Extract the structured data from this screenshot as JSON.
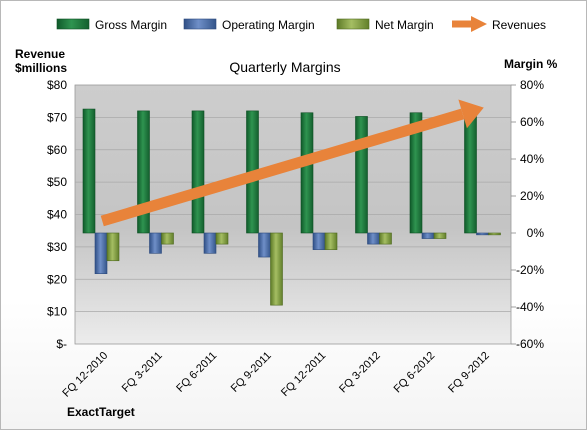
{
  "chart_data": {
    "type": "bar",
    "title": "Quarterly Margins",
    "left_axis_label": [
      "Revenue",
      "$millions"
    ],
    "right_axis_label": "Margin %",
    "source_label": "ExactTarget",
    "categories": [
      "FQ 12-2010",
      "FQ 3-2011",
      "FQ 6-2011",
      "FQ 9-2011",
      "FQ 12-2011",
      "FQ 3-2012",
      "FQ 6-2012",
      "FQ 9-2012"
    ],
    "left_axis": {
      "min": 0,
      "max": 80,
      "step": 10,
      "tick_labels": [
        "$-",
        "$10",
        "$20",
        "$30",
        "$40",
        "$50",
        "$60",
        "$70",
        "$80"
      ]
    },
    "right_axis": {
      "min": -60,
      "max": 80,
      "step": 20,
      "tick_labels": [
        "-60%",
        "-40%",
        "-20%",
        "0%",
        "20%",
        "40%",
        "60%",
        "80%"
      ]
    },
    "grid": true,
    "legend_position": "top",
    "series": [
      {
        "name": "Gross Margin",
        "axis": "right",
        "kind": "bar",
        "color": "#1f7a3f",
        "values": [
          67,
          66,
          66,
          66,
          65,
          63,
          65,
          67
        ]
      },
      {
        "name": "Operating Margin",
        "axis": "right",
        "kind": "bar",
        "color": "#4a6fae",
        "values": [
          -22,
          -11,
          -11,
          -13,
          -9,
          -6,
          -3,
          -1
        ]
      },
      {
        "name": "Net Margin",
        "axis": "right",
        "kind": "bar",
        "color": "#7f9a3f",
        "values": [
          -15,
          -6,
          -6,
          -39,
          -9,
          -6,
          -3,
          -1
        ]
      },
      {
        "name": "Revenues",
        "axis": "left",
        "kind": "arrow",
        "color": "#e8833a",
        "values": [
          38,
          43,
          48,
          54,
          58,
          62,
          67,
          73
        ]
      }
    ]
  }
}
